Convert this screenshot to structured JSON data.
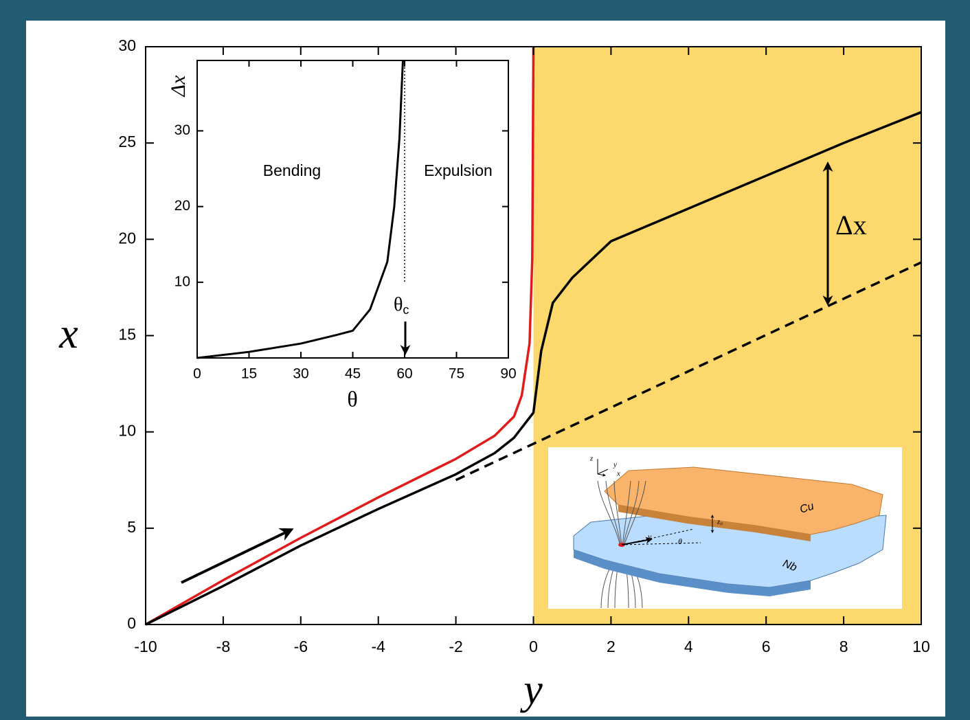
{
  "chart_data": [
    {
      "type": "line",
      "xlabel": "y",
      "ylabel": "x",
      "xlim": [
        -10,
        10
      ],
      "ylim": [
        0,
        30
      ],
      "xticks": [
        -10,
        -8,
        -6,
        -4,
        -2,
        0,
        2,
        4,
        6,
        8,
        10
      ],
      "yticks": [
        0,
        5,
        10,
        15,
        20,
        25,
        30
      ],
      "shade": {
        "x": [
          0,
          10
        ],
        "color": "#fdd86c"
      },
      "series": [
        {
          "color": "#e01b1b",
          "dashed": false,
          "x": [
            -10,
            -8,
            -6,
            -4,
            -2,
            -1,
            -0.5,
            -0.3,
            -0.1,
            -0.03,
            0
          ],
          "values": [
            0,
            2.3,
            4.5,
            6.6,
            8.6,
            9.8,
            10.8,
            11.9,
            14.6,
            19,
            30
          ]
        },
        {
          "color": "#000000",
          "dashed": false,
          "x": [
            -10,
            -8,
            -6,
            -4,
            -2,
            -1,
            -0.5,
            0,
            0.2,
            0.5,
            1,
            2,
            4,
            6,
            8,
            10
          ],
          "values": [
            0,
            2.0,
            4.1,
            6.0,
            7.8,
            8.9,
            9.7,
            11.0,
            14.2,
            16.7,
            18.0,
            19.9,
            21.6,
            23.3,
            25.0,
            26.6
          ]
        },
        {
          "color": "#000000",
          "dashed": true,
          "x": [
            -2,
            10
          ],
          "values": [
            7.5,
            18.8
          ]
        }
      ],
      "annotation": "Δx"
    },
    {
      "type": "line",
      "xlabel": "θ",
      "ylabel": "Δx",
      "xlim": [
        0,
        90
      ],
      "ylim": [
        0,
        39.3
      ],
      "xticks": [
        0,
        15,
        30,
        45,
        60,
        75,
        90
      ],
      "yticks": [
        10,
        20,
        30
      ],
      "critical_angle": 60,
      "critical_label": "θ",
      "critical_subscript": "c",
      "regions": [
        "Bending",
        "Expulsion"
      ],
      "series": [
        {
          "color": "#000000",
          "dashed": false,
          "x": [
            0,
            15,
            30,
            40,
            45,
            50,
            55,
            57,
            58.5,
            59.5
          ],
          "values": [
            0,
            0.8,
            1.9,
            3,
            3.6,
            6.4,
            12.7,
            20,
            29,
            39.3
          ]
        }
      ]
    }
  ],
  "schematic": {
    "labels": [
      "Cu",
      "Nb",
      "z",
      "y",
      "x",
      "v",
      "θ",
      "z₀"
    ]
  }
}
